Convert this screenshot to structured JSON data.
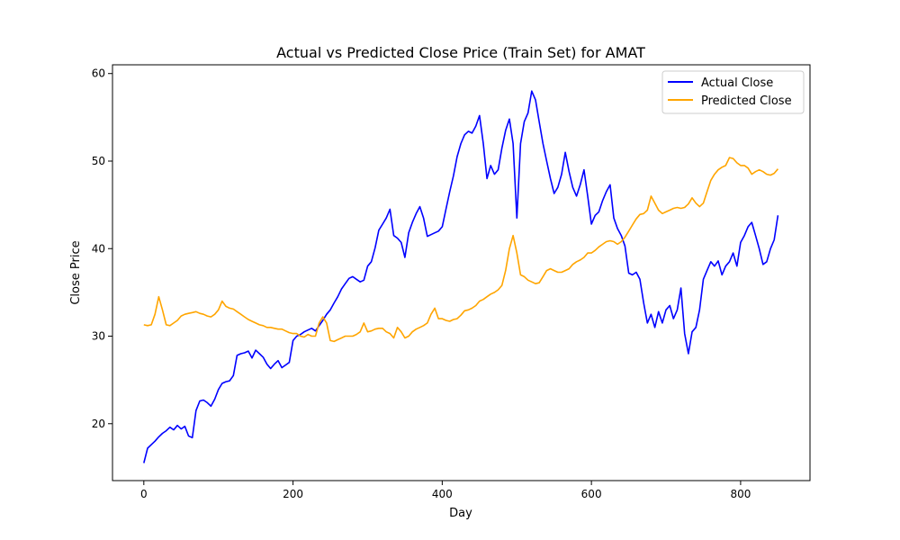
{
  "chart_data": {
    "type": "line",
    "title": "Actual vs Predicted Close Price (Train Set) for AMAT",
    "xlabel": "Day",
    "ylabel": "Close Price",
    "xlim": [
      -42,
      893
    ],
    "ylim": [
      13.5,
      61
    ],
    "xticks": [
      0,
      200,
      400,
      600,
      800
    ],
    "yticks": [
      20,
      30,
      40,
      50,
      60
    ],
    "grid": false,
    "legend_position": "top-right",
    "series": [
      {
        "name": "Actual Close",
        "color": "#0000ff",
        "x": [
          0,
          5,
          10,
          15,
          20,
          25,
          30,
          35,
          40,
          45,
          50,
          55,
          60,
          65,
          70,
          75,
          80,
          85,
          90,
          95,
          100,
          105,
          110,
          115,
          120,
          125,
          130,
          135,
          140,
          145,
          150,
          155,
          160,
          165,
          170,
          175,
          180,
          185,
          190,
          195,
          200,
          205,
          210,
          215,
          220,
          225,
          230,
          235,
          240,
          245,
          250,
          255,
          260,
          265,
          270,
          275,
          280,
          285,
          290,
          295,
          300,
          305,
          310,
          315,
          320,
          325,
          330,
          335,
          340,
          345,
          350,
          355,
          360,
          365,
          370,
          375,
          380,
          385,
          390,
          395,
          400,
          405,
          410,
          415,
          420,
          425,
          430,
          435,
          440,
          445,
          450,
          455,
          460,
          465,
          470,
          475,
          480,
          485,
          490,
          495,
          500,
          505,
          510,
          515,
          520,
          525,
          530,
          535,
          540,
          545,
          550,
          555,
          560,
          565,
          570,
          575,
          580,
          585,
          590,
          595,
          600,
          605,
          610,
          615,
          620,
          625,
          630,
          635,
          640,
          645,
          650,
          655,
          660,
          665,
          670,
          675,
          680,
          685,
          690,
          695,
          700,
          705,
          710,
          715,
          720,
          725,
          730,
          735,
          740,
          745,
          750,
          755,
          760,
          765,
          770,
          775,
          780,
          785,
          790,
          795,
          800,
          805,
          810,
          815,
          820,
          825,
          830,
          835,
          840,
          845,
          850
        ],
        "values": [
          15.5,
          17.2,
          17.6,
          18.0,
          18.5,
          18.9,
          19.2,
          19.6,
          19.3,
          19.8,
          19.4,
          19.7,
          18.6,
          18.4,
          21.5,
          22.6,
          22.7,
          22.4,
          22.0,
          22.8,
          23.9,
          24.6,
          24.8,
          24.9,
          25.5,
          27.8,
          28.0,
          28.1,
          28.3,
          27.5,
          28.4,
          28.0,
          27.6,
          26.8,
          26.3,
          26.8,
          27.2,
          26.4,
          26.7,
          27.0,
          29.5,
          30.0,
          30.2,
          30.5,
          30.7,
          30.9,
          30.6,
          31.2,
          31.8,
          32.5,
          33.0,
          33.8,
          34.5,
          35.4,
          36.0,
          36.6,
          36.8,
          36.5,
          36.2,
          36.4,
          38.0,
          38.5,
          40.1,
          42.1,
          42.8,
          43.5,
          44.5,
          41.5,
          41.2,
          40.7,
          39.0,
          41.8,
          43.0,
          44.0,
          44.8,
          43.5,
          41.4,
          41.6,
          41.8,
          42.0,
          42.5,
          44.5,
          46.5,
          48.3,
          50.5,
          52.0,
          53.0,
          53.4,
          53.2,
          54.0,
          55.2,
          52.0,
          48.0,
          49.5,
          48.5,
          49.0,
          51.5,
          53.5,
          54.8,
          52.0,
          43.5,
          52.0,
          54.5,
          55.5,
          58.0,
          57.0,
          54.5,
          52.0,
          50.0,
          48.0,
          46.3,
          47.0,
          48.5,
          51.0,
          48.8,
          47.0,
          46.0,
          47.3,
          49.0,
          46.0,
          42.8,
          43.8,
          44.2,
          45.5,
          46.5,
          47.3,
          43.5,
          42.3,
          41.5,
          40.3,
          37.2,
          37.0,
          37.3,
          36.5,
          33.8,
          31.5,
          32.5,
          31.0,
          32.8,
          31.5,
          33.0,
          33.5,
          32.0,
          33.0,
          35.5,
          30.3,
          28.0,
          30.5,
          31.0,
          33.0,
          36.5,
          37.5,
          38.5,
          38.0,
          38.6,
          37.0,
          38.0,
          38.5,
          39.5,
          38.0,
          40.7,
          41.5,
          42.5,
          43.0,
          41.5,
          40.0,
          38.2,
          38.5,
          40.0,
          41.0,
          43.8
        ]
      },
      {
        "name": "Predicted Close",
        "color": "#ffa500",
        "x": [
          0,
          5,
          10,
          15,
          20,
          25,
          30,
          35,
          40,
          45,
          50,
          55,
          60,
          65,
          70,
          75,
          80,
          85,
          90,
          95,
          100,
          105,
          110,
          115,
          120,
          125,
          130,
          135,
          140,
          145,
          150,
          155,
          160,
          165,
          170,
          175,
          180,
          185,
          190,
          195,
          200,
          205,
          210,
          215,
          220,
          225,
          230,
          235,
          240,
          245,
          250,
          255,
          260,
          265,
          270,
          275,
          280,
          285,
          290,
          295,
          300,
          305,
          310,
          315,
          320,
          325,
          330,
          335,
          340,
          345,
          350,
          355,
          360,
          365,
          370,
          375,
          380,
          385,
          390,
          395,
          400,
          405,
          410,
          415,
          420,
          425,
          430,
          435,
          440,
          445,
          450,
          455,
          460,
          465,
          470,
          475,
          480,
          485,
          490,
          495,
          500,
          505,
          510,
          515,
          520,
          525,
          530,
          535,
          540,
          545,
          550,
          555,
          560,
          565,
          570,
          575,
          580,
          585,
          590,
          595,
          600,
          605,
          610,
          615,
          620,
          625,
          630,
          635,
          640,
          645,
          650,
          655,
          660,
          665,
          670,
          675,
          680,
          685,
          690,
          695,
          700,
          705,
          710,
          715,
          720,
          725,
          730,
          735,
          740,
          745,
          750,
          755,
          760,
          765,
          770,
          775,
          780,
          785,
          790,
          795,
          800,
          805,
          810,
          815,
          820,
          825,
          830,
          835,
          840,
          845,
          850
        ],
        "values": [
          31.3,
          31.2,
          31.3,
          32.5,
          34.5,
          33.0,
          31.3,
          31.2,
          31.5,
          31.8,
          32.3,
          32.5,
          32.6,
          32.7,
          32.8,
          32.6,
          32.5,
          32.3,
          32.2,
          32.5,
          33.0,
          34.0,
          33.4,
          33.2,
          33.1,
          32.8,
          32.5,
          32.2,
          31.9,
          31.7,
          31.5,
          31.3,
          31.2,
          31.0,
          31.0,
          30.9,
          30.8,
          30.8,
          30.6,
          30.4,
          30.3,
          30.3,
          30.0,
          29.9,
          30.2,
          30.0,
          30.0,
          31.5,
          32.2,
          31.5,
          29.5,
          29.4,
          29.6,
          29.8,
          30.0,
          30.0,
          30.0,
          30.2,
          30.5,
          31.5,
          30.5,
          30.6,
          30.8,
          30.9,
          30.9,
          30.5,
          30.3,
          29.8,
          31.0,
          30.5,
          29.8,
          30.0,
          30.5,
          30.8,
          31.0,
          31.2,
          31.5,
          32.5,
          33.2,
          32.0,
          32.0,
          31.8,
          31.7,
          31.9,
          32.0,
          32.4,
          32.9,
          33.0,
          33.2,
          33.5,
          34.0,
          34.2,
          34.5,
          34.8,
          35.0,
          35.3,
          35.8,
          37.5,
          40.0,
          41.5,
          39.5,
          37.0,
          36.8,
          36.4,
          36.2,
          36.0,
          36.1,
          36.8,
          37.5,
          37.7,
          37.5,
          37.3,
          37.3,
          37.5,
          37.7,
          38.2,
          38.5,
          38.7,
          39.0,
          39.5,
          39.5,
          39.8,
          40.2,
          40.5,
          40.8,
          40.9,
          40.8,
          40.5,
          40.8,
          41.3,
          42.0,
          42.7,
          43.4,
          43.9,
          44.0,
          44.4,
          46.0,
          45.2,
          44.4,
          44.0,
          44.2,
          44.4,
          44.6,
          44.7,
          44.6,
          44.7,
          45.1,
          45.8,
          45.2,
          44.8,
          45.2,
          46.5,
          47.8,
          48.5,
          49.0,
          49.3,
          49.5,
          50.4,
          50.3,
          49.8,
          49.5,
          49.5,
          49.2,
          48.5,
          48.8,
          49.0,
          48.8,
          48.5,
          48.4,
          48.6,
          49.1
        ]
      }
    ]
  }
}
